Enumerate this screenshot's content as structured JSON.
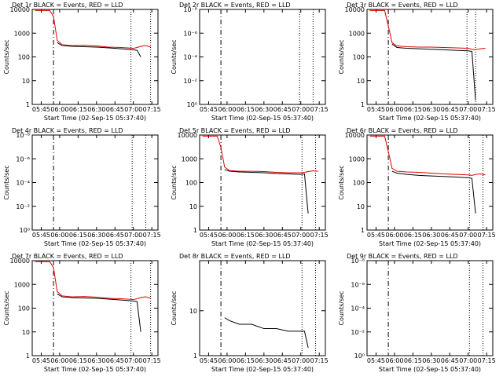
{
  "chart_data": [
    {
      "type": "line",
      "title": "Det 1r BLACK = Events, RED = LLD",
      "xlabel": "Start Time (02-Sep-15 05:37:40)",
      "ylabel": "Counts/sec",
      "log_y": true,
      "xlim": [
        337.67,
        440
      ],
      "xticks": [
        {
          "value": 345,
          "label": "05:45"
        },
        {
          "value": 360,
          "label": "06:00"
        },
        {
          "value": 375,
          "label": "06:15"
        },
        {
          "value": 390,
          "label": "06:30"
        },
        {
          "value": 405,
          "label": "06:45"
        },
        {
          "value": 420,
          "label": "07:00"
        },
        {
          "value": 435,
          "label": "07:15"
        }
      ],
      "ylim": [
        1,
        10000
      ],
      "yticks": [
        1,
        10,
        100,
        1000,
        10000
      ],
      "dashed_x": 355,
      "dotted_x": [
        418,
        434
      ],
      "x": [
        340,
        343,
        346,
        349,
        352,
        355,
        358,
        362,
        370,
        380,
        390,
        400,
        410,
        420,
        423,
        426,
        430,
        434
      ],
      "series": [
        {
          "name": "Events",
          "color": "#000000",
          "values": [
            null,
            null,
            null,
            null,
            null,
            null,
            400,
            300,
            280,
            270,
            260,
            240,
            220,
            200,
            190,
            100,
            null,
            null
          ]
        },
        {
          "name": "LLD",
          "color": "#e00000",
          "values": [
            9000,
            9000,
            9000,
            9000,
            9000,
            5000,
            500,
            330,
            300,
            310,
            290,
            260,
            250,
            230,
            250,
            280,
            300,
            260
          ]
        }
      ]
    },
    {
      "type": "line",
      "title": "Det 2r BLACK = Events, RED = LLD",
      "xlabel": "Start Time (02-Sep-15 05:37:40)",
      "ylabel": "Counts/sec",
      "log_y": false,
      "xlim": [
        337.67,
        440
      ],
      "xticks": [
        {
          "value": 345,
          "label": "05:45"
        },
        {
          "value": 360,
          "label": "06:00"
        },
        {
          "value": 375,
          "label": "06:15"
        },
        {
          "value": 390,
          "label": "06:30"
        },
        {
          "value": 405,
          "label": "06:45"
        },
        {
          "value": 420,
          "label": "07:00"
        },
        {
          "value": 435,
          "label": "07:15"
        }
      ],
      "ylim": [
        0,
        8
      ],
      "yticks": [
        {
          "value": 0,
          "label": "10⁰"
        },
        {
          "value": 2,
          "label": "10⁻²"
        },
        {
          "value": 4,
          "label": "10⁻⁴"
        },
        {
          "value": 6,
          "label": "10⁻⁶"
        },
        {
          "value": 8,
          "label": "10⁻⁸"
        }
      ],
      "dashed_x": 355,
      "dotted_x": [
        419,
        430
      ],
      "x": [],
      "series": []
    },
    {
      "type": "line",
      "title": "Det 3r BLACK = Events, RED = LLD",
      "xlabel": "Start Time (02-Sep-15 05:37:40)",
      "ylabel": "Counts/sec",
      "log_y": true,
      "xlim": [
        337.67,
        440
      ],
      "xticks": [
        {
          "value": 345,
          "label": "05:45"
        },
        {
          "value": 360,
          "label": "06:00"
        },
        {
          "value": 375,
          "label": "06:15"
        },
        {
          "value": 390,
          "label": "06:30"
        },
        {
          "value": 405,
          "label": "06:45"
        },
        {
          "value": 420,
          "label": "07:00"
        },
        {
          "value": 435,
          "label": "07:15"
        }
      ],
      "ylim": [
        1,
        10000
      ],
      "yticks": [
        1,
        10,
        100,
        1000,
        10000
      ],
      "dashed_x": 355,
      "dotted_x": [
        419,
        426
      ],
      "x": [
        340,
        343,
        346,
        349,
        352,
        355,
        358,
        362,
        370,
        380,
        390,
        400,
        410,
        420,
        423,
        426,
        430,
        434
      ],
      "series": [
        {
          "name": "Events",
          "color": "#000000",
          "values": [
            null,
            null,
            null,
            null,
            null,
            null,
            350,
            250,
            230,
            220,
            210,
            200,
            190,
            180,
            170,
            1.5,
            null,
            null
          ]
        },
        {
          "name": "LLD",
          "color": "#e00000",
          "values": [
            9000,
            9000,
            9000,
            9000,
            9000,
            2000,
            400,
            290,
            270,
            260,
            260,
            250,
            240,
            230,
            210,
            200,
            220,
            230
          ]
        }
      ]
    },
    {
      "type": "line",
      "title": "Det 4r BLACK = Events, RED = LLD",
      "xlabel": "Start Time (02-Sep-15 05:37:40)",
      "ylabel": "Counts/sec",
      "log_y": false,
      "xlim": [
        337.67,
        440
      ],
      "xticks": [
        {
          "value": 345,
          "label": "05:45"
        },
        {
          "value": 360,
          "label": "06:00"
        },
        {
          "value": 375,
          "label": "06:15"
        },
        {
          "value": 390,
          "label": "06:30"
        },
        {
          "value": 405,
          "label": "06:45"
        },
        {
          "value": 420,
          "label": "07:00"
        },
        {
          "value": 435,
          "label": "07:15"
        }
      ],
      "ylim": [
        0,
        8
      ],
      "yticks": [
        {
          "value": 0,
          "label": "10⁰"
        },
        {
          "value": 2,
          "label": "10⁻²"
        },
        {
          "value": 4,
          "label": "10⁻⁴"
        },
        {
          "value": 6,
          "label": "10⁻⁶"
        },
        {
          "value": 8,
          "label": "10⁻⁸"
        }
      ],
      "dashed_x": 355,
      "dotted_x": [
        419,
        430
      ],
      "x": [],
      "series": []
    },
    {
      "type": "line",
      "title": "Det 5r BLACK = Events, RED = LLD",
      "xlabel": "Start Time (02-Sep-15 05:37:40)",
      "ylabel": "Counts/sec",
      "log_y": true,
      "xlim": [
        337.67,
        440
      ],
      "xticks": [
        {
          "value": 345,
          "label": "05:45"
        },
        {
          "value": 360,
          "label": "06:00"
        },
        {
          "value": 375,
          "label": "06:15"
        },
        {
          "value": 390,
          "label": "06:30"
        },
        {
          "value": 405,
          "label": "06:45"
        },
        {
          "value": 420,
          "label": "07:00"
        },
        {
          "value": 435,
          "label": "07:15"
        }
      ],
      "ylim": [
        1,
        10000
      ],
      "yticks": [
        1,
        10,
        100,
        1000,
        10000
      ],
      "dashed_x": 355,
      "dotted_x": [
        421,
        432
      ],
      "x": [
        340,
        343,
        346,
        349,
        352,
        355,
        358,
        362,
        370,
        380,
        390,
        400,
        410,
        420,
        423,
        426,
        430,
        434
      ],
      "series": [
        {
          "name": "Events",
          "color": "#000000",
          "values": [
            null,
            null,
            null,
            null,
            null,
            null,
            350,
            300,
            280,
            270,
            260,
            240,
            230,
            220,
            230,
            5,
            null,
            null
          ]
        },
        {
          "name": "LLD",
          "color": "#e00000",
          "values": [
            9000,
            9000,
            9000,
            9000,
            9000,
            3000,
            450,
            320,
            300,
            300,
            290,
            270,
            260,
            260,
            270,
            290,
            310,
            300
          ]
        }
      ]
    },
    {
      "type": "line",
      "title": "Det 6r BLACK = Events, RED = LLD",
      "xlabel": "Start Time (02-Sep-15 05:37:40)",
      "ylabel": "Counts/sec",
      "log_y": true,
      "xlim": [
        337.67,
        440
      ],
      "xticks": [
        {
          "value": 345,
          "label": "05:45"
        },
        {
          "value": 360,
          "label": "06:00"
        },
        {
          "value": 375,
          "label": "06:15"
        },
        {
          "value": 390,
          "label": "06:30"
        },
        {
          "value": 405,
          "label": "06:45"
        },
        {
          "value": 420,
          "label": "07:00"
        },
        {
          "value": 435,
          "label": "07:15"
        }
      ],
      "ylim": [
        1,
        10000
      ],
      "yticks": [
        1,
        10,
        100,
        1000,
        10000
      ],
      "dashed_x": 355,
      "dotted_x": [
        421,
        432
      ],
      "x": [
        340,
        343,
        346,
        349,
        352,
        355,
        358,
        362,
        370,
        380,
        390,
        400,
        410,
        420,
        423,
        426,
        430,
        434
      ],
      "series": [
        {
          "name": "Events",
          "color": "#000000",
          "values": [
            null,
            null,
            null,
            null,
            null,
            null,
            300,
            250,
            220,
            200,
            190,
            180,
            170,
            160,
            150,
            5,
            null,
            null
          ]
        },
        {
          "name": "LLD",
          "color": "#e00000",
          "values": [
            9000,
            9000,
            9000,
            9000,
            9000,
            2000,
            400,
            300,
            280,
            270,
            250,
            230,
            220,
            210,
            200,
            220,
            230,
            210
          ]
        }
      ]
    },
    {
      "type": "line",
      "title": "Det 7r BLACK = Events, RED = LLD",
      "xlabel": "Start Time (02-Sep-15 05:37:40)",
      "ylabel": "Counts/sec",
      "log_y": true,
      "xlim": [
        337.67,
        440
      ],
      "xticks": [
        {
          "value": 345,
          "label": "05:45"
        },
        {
          "value": 360,
          "label": "06:00"
        },
        {
          "value": 375,
          "label": "06:15"
        },
        {
          "value": 390,
          "label": "06:30"
        },
        {
          "value": 405,
          "label": "06:45"
        },
        {
          "value": 420,
          "label": "07:00"
        },
        {
          "value": 435,
          "label": "07:15"
        }
      ],
      "ylim": [
        1,
        10000
      ],
      "yticks": [
        1,
        10,
        100,
        1000,
        10000
      ],
      "dashed_x": 355,
      "dotted_x": [
        418,
        434
      ],
      "x": [
        340,
        343,
        346,
        349,
        352,
        355,
        358,
        362,
        370,
        380,
        390,
        400,
        410,
        420,
        423,
        426,
        430,
        434
      ],
      "series": [
        {
          "name": "Events",
          "color": "#000000",
          "values": [
            null,
            null,
            null,
            null,
            null,
            null,
            400,
            300,
            280,
            270,
            260,
            240,
            220,
            200,
            190,
            10,
            null,
            null
          ]
        },
        {
          "name": "LLD",
          "color": "#e00000",
          "values": [
            9000,
            9000,
            9000,
            9000,
            9000,
            5000,
            500,
            330,
            300,
            310,
            290,
            260,
            250,
            230,
            250,
            280,
            300,
            260
          ]
        }
      ]
    },
    {
      "type": "line",
      "title": "Det 8r BLACK = Events, RED = LLD",
      "xlabel": "Start Time (02-Sep-15 05:37:40)",
      "ylabel": "Counts/sec",
      "log_y": true,
      "xlim": [
        337.67,
        440
      ],
      "xticks": [
        {
          "value": 345,
          "label": "05:45"
        },
        {
          "value": 360,
          "label": "06:00"
        },
        {
          "value": 375,
          "label": "06:15"
        },
        {
          "value": 390,
          "label": "06:30"
        },
        {
          "value": 405,
          "label": "06:45"
        },
        {
          "value": 420,
          "label": "07:00"
        },
        {
          "value": 435,
          "label": "07:15"
        }
      ],
      "ylim": [
        1,
        130
      ],
      "yticks": [
        1,
        10
      ],
      "dashed_x": 355,
      "dotted_x": [
        421,
        432
      ],
      "x": [
        340,
        343,
        346,
        349,
        352,
        355,
        358,
        362,
        370,
        380,
        390,
        400,
        410,
        420,
        423,
        426,
        430,
        434
      ],
      "series": [
        {
          "name": "Events",
          "color": "#000000",
          "values": [
            null,
            null,
            null,
            null,
            null,
            null,
            7,
            6,
            5,
            5,
            4,
            4,
            3.5,
            3.5,
            3.5,
            1.5,
            null,
            null
          ]
        }
      ]
    },
    {
      "type": "line",
      "title": "Det 9r BLACK = Events, RED = LLD",
      "xlabel": "Start Time (02-Sep-15 05:37:40)",
      "ylabel": "Counts/sec",
      "log_y": false,
      "xlim": [
        337.67,
        440
      ],
      "xticks": [
        {
          "value": 345,
          "label": "05:45"
        },
        {
          "value": 360,
          "label": "06:00"
        },
        {
          "value": 375,
          "label": "06:15"
        },
        {
          "value": 390,
          "label": "06:30"
        },
        {
          "value": 405,
          "label": "06:45"
        },
        {
          "value": 420,
          "label": "07:00"
        },
        {
          "value": 435,
          "label": "07:15"
        }
      ],
      "ylim": [
        0,
        8
      ],
      "yticks": [
        {
          "value": 0,
          "label": "10⁰"
        },
        {
          "value": 2,
          "label": "10⁻²"
        },
        {
          "value": 4,
          "label": "10⁻⁴"
        },
        {
          "value": 6,
          "label": "10⁻⁶"
        },
        {
          "value": 8,
          "label": "10⁻⁸"
        }
      ],
      "dashed_x": 355,
      "dotted_x": [
        421,
        432
      ],
      "x": [],
      "series": []
    }
  ]
}
